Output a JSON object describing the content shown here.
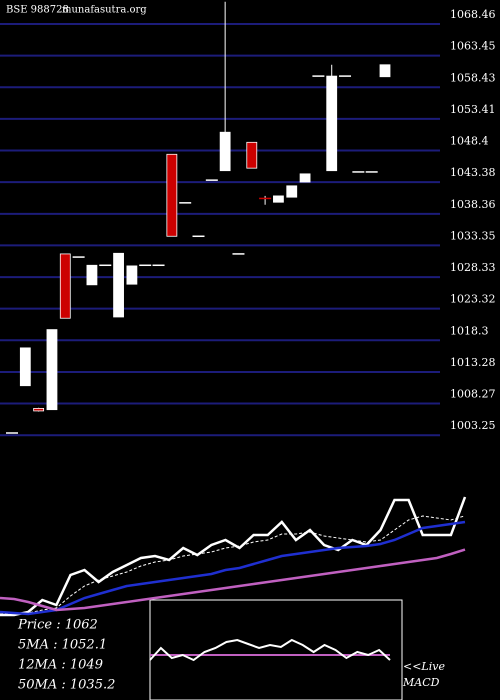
{
  "chart_data": {
    "type": "candlestick",
    "title": "BSE 988728",
    "subtitle": "munafasutra.org",
    "ylim": [
      1002.49,
      1072.27
    ],
    "yticks": [
      1068.46,
      1063.45,
      1058.43,
      1053.41,
      1048.4,
      1043.38,
      1038.36,
      1033.35,
      1028.33,
      1023.32,
      1018.3,
      1013.28,
      1008.27,
      1003.25
    ],
    "grid": true,
    "grid_color": "#1c1c7a",
    "up_color": "#ffffff",
    "down_color": "#cc0000",
    "open": [
      1003.6,
      1011.1,
      1007.5,
      1007.3,
      1032.0,
      1031.5,
      1027.1,
      1030.2,
      1022.0,
      1027.2,
      1030.2,
      1030.2,
      1047.8,
      1040.1,
      1034.8,
      1043.7,
      1045.2,
      1032.0,
      1049.7,
      1041.0,
      1040.2,
      1041.0,
      1043.4,
      1060.2,
      1045.2,
      1060.2,
      1045.0,
      1045.0,
      1060.1
    ],
    "high": [
      1003.6,
      1017.1,
      1007.6,
      1020.0,
      1032.0,
      1031.5,
      1030.2,
      1030.2,
      1032.1,
      1030.1,
      1030.2,
      1030.2,
      1047.8,
      1040.1,
      1034.8,
      1043.7,
      1072.0,
      1032.0,
      1049.7,
      1041.2,
      1041.2,
      1042.8,
      1044.7,
      1060.2,
      1062.0,
      1060.2,
      1045.0,
      1045.0,
      1062.0
    ],
    "low": [
      1003.6,
      1011.1,
      1007.0,
      1007.3,
      1021.8,
      1031.5,
      1027.1,
      1030.2,
      1022.0,
      1027.2,
      1030.2,
      1030.2,
      1034.8,
      1040.1,
      1034.8,
      1043.7,
      1045.2,
      1032.0,
      1045.6,
      1039.8,
      1040.2,
      1041.0,
      1043.4,
      1060.2,
      1045.2,
      1060.2,
      1045.0,
      1045.0,
      1060.1
    ],
    "close": [
      1003.6,
      1017.1,
      1007.1,
      1020.0,
      1021.8,
      1031.5,
      1030.2,
      1030.2,
      1032.1,
      1030.1,
      1030.2,
      1030.2,
      1034.8,
      1040.1,
      1034.8,
      1043.7,
      1051.3,
      1032.0,
      1045.6,
      1040.8,
      1041.2,
      1042.8,
      1044.7,
      1060.2,
      1060.2,
      1060.2,
      1045.0,
      1045.0,
      1062.0
    ],
    "ma_panel": {
      "ylim": [
        990,
        1070
      ],
      "series": [
        {
          "color": "#ffffff",
          "style": "solid",
          "values": [
            1002.5,
            1002.5,
            1004,
            1010,
            1007.5,
            1022.5,
            1025,
            1019,
            1024,
            1027.5,
            1031,
            1032,
            1030,
            1036,
            1032.5,
            1037.5,
            1040,
            1036,
            1042.5,
            1042.5,
            1049,
            1040,
            1045,
            1037.5,
            1035,
            1040,
            1037.5,
            1045,
            1060,
            1060,
            1042.5,
            1042.5,
            1042.5,
            1061.5
          ]
        },
        {
          "color": "#ffffff",
          "style": "dashed",
          "values": [
            1003,
            1003,
            1003.5,
            1005,
            1006,
            1012,
            1017,
            1020,
            1022,
            1024,
            1027,
            1029,
            1030,
            1032,
            1033,
            1034,
            1036,
            1037,
            1039,
            1040,
            1043,
            1043,
            1044,
            1042,
            1041,
            1040,
            1039,
            1040,
            1045,
            1050,
            1052,
            1051,
            1050,
            1052.1
          ]
        },
        {
          "color": "#1f2fd0",
          "style": "solid",
          "values": [
            1004,
            1003.5,
            1003,
            1004,
            1005,
            1008,
            1011,
            1013,
            1015,
            1017,
            1018,
            1019,
            1020,
            1021,
            1022,
            1023,
            1025,
            1026,
            1028,
            1030,
            1032,
            1033,
            1034,
            1035,
            1036,
            1036.5,
            1037,
            1038,
            1040,
            1043,
            1046,
            1047,
            1048,
            1049
          ]
        },
        {
          "color": "#c060c0",
          "style": "solid",
          "values": [
            1011,
            1010.5,
            1009,
            1007,
            1005,
            1005.5,
            1006,
            1007,
            1008,
            1009,
            1010,
            1011,
            1012,
            1013,
            1014,
            1015,
            1016,
            1017,
            1018,
            1019,
            1020,
            1021,
            1022,
            1023,
            1024,
            1025,
            1026,
            1027,
            1028,
            1029,
            1030,
            1031,
            1033,
            1035.2
          ]
        }
      ],
      "labels": [
        "Price : 1062",
        "5MA : 1052.1",
        "12MA : 1049",
        "50MA : 1035.2"
      ]
    },
    "macd_panel": {
      "ylim": [
        -4.5,
        5.5
      ],
      "signal_color": "#c060c0",
      "macd_color": "#ffffff",
      "signal": [
        0,
        0
      ],
      "macd": [
        -0.5,
        0.7,
        -0.3,
        0,
        -0.5,
        0.3,
        0.7,
        1.3,
        1.5,
        1.1,
        0.7,
        1,
        0.8,
        1.5,
        1,
        0.3,
        1,
        0.5,
        -0.3,
        0.3,
        0,
        0.5,
        -0.5
      ],
      "labels": [
        "<<Live",
        "MACD"
      ]
    }
  }
}
